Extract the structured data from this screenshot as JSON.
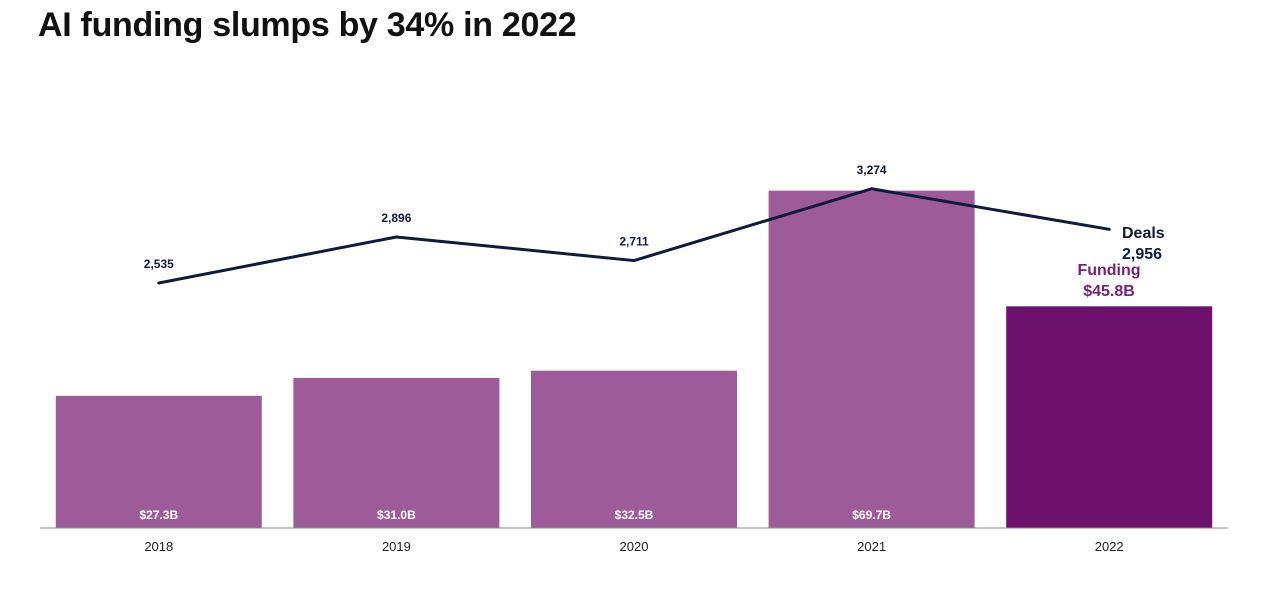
{
  "title": "AI funding slumps by 34% in 2022",
  "colors": {
    "bar": "#9d5b9a",
    "bar_highlight": "#6e116d",
    "line": "#0d1b3e",
    "funding_label": "#7a1f78",
    "axis": "#888888"
  },
  "chart_data": {
    "type": "bar",
    "categories": [
      "2018",
      "2019",
      "2020",
      "2021",
      "2022"
    ],
    "series": [
      {
        "name": "Funding",
        "type": "bar",
        "values": [
          27.3,
          31.0,
          32.5,
          69.7,
          45.8
        ],
        "labels": [
          "$27.3B",
          "$31.0B",
          "$32.5B",
          "$69.7B",
          "$45.8B"
        ]
      },
      {
        "name": "Deals",
        "type": "line",
        "values": [
          2535,
          2896,
          2711,
          3274,
          2956
        ],
        "labels": [
          "2,535",
          "2,896",
          "2,711",
          "3,274",
          "2,956"
        ]
      }
    ],
    "legend": {
      "deals_name": "Deals",
      "deals_value": "2,956",
      "funding_name": "Funding",
      "funding_value": "$45.8B"
    },
    "grid": false,
    "funding_ylim": [
      0,
      70
    ],
    "deals_ylim": [
      0,
      3300
    ]
  }
}
